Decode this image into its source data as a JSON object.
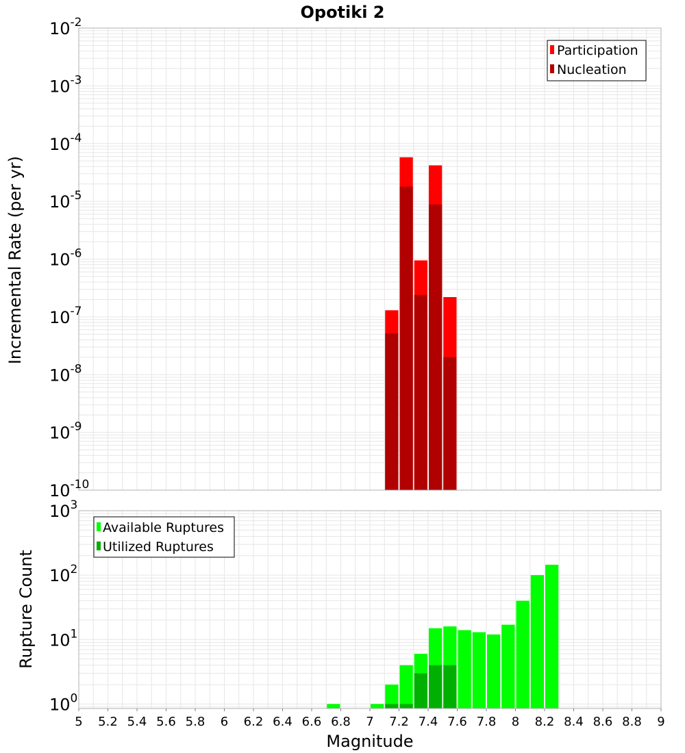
{
  "title": "Opotiki 2",
  "colors": {
    "participation": "#ff0000",
    "nucleation": "#b00000",
    "available": "#00ff00",
    "utilized": "#00b000",
    "grid": "#e6e6e6",
    "frame": "#b0b0b0"
  },
  "chart_data": [
    {
      "type": "bar",
      "name": "incremental-rate",
      "ylabel": "Incremental Rate (per yr)",
      "xlabel": "",
      "yscale": "log",
      "xlim": [
        5,
        9
      ],
      "ylim_exp": [
        -10,
        -2
      ],
      "ytick_exps": [
        -10,
        -9,
        -8,
        -7,
        -6,
        -5,
        -4,
        -3,
        -2
      ],
      "legend": {
        "position": "top-right",
        "entries": [
          "Participation",
          "Nucleation"
        ]
      },
      "bin_width": 0.1,
      "x": [
        7.15,
        7.25,
        7.35,
        7.45,
        7.55
      ],
      "series": [
        {
          "name": "Participation",
          "values": [
            1.3e-07,
            5.8e-05,
            9.5e-07,
            4.2e-05,
            2.2e-07
          ]
        },
        {
          "name": "Nucleation",
          "values": [
            5.2e-08,
            1.8e-05,
            2.4e-07,
            8.8e-06,
            2e-08
          ]
        }
      ]
    },
    {
      "type": "bar",
      "name": "rupture-count",
      "ylabel": "Rupture Count",
      "xlabel": "Magnitude",
      "yscale": "log",
      "xlim": [
        5,
        9
      ],
      "ylim_exp": [
        -0.07,
        3
      ],
      "ytick_exps": [
        0,
        1,
        2,
        3
      ],
      "legend": {
        "position": "top-left",
        "entries": [
          "Available Ruptures",
          "Utilized Ruptures"
        ]
      },
      "bin_width": 0.1,
      "x": [
        6.75,
        7.05,
        7.15,
        7.25,
        7.35,
        7.45,
        7.55,
        7.65,
        7.75,
        7.85,
        7.95,
        8.05,
        8.15,
        8.25
      ],
      "series": [
        {
          "name": "Available Ruptures",
          "values": [
            1,
            1,
            2,
            4,
            6,
            15,
            16,
            14,
            13,
            12,
            17,
            40,
            100,
            145
          ]
        },
        {
          "name": "Utilized Ruptures",
          "values": [
            0,
            0,
            1,
            1,
            3,
            4,
            4,
            0,
            0,
            0,
            0,
            0,
            0,
            0
          ]
        }
      ]
    }
  ],
  "xticks": [
    "5",
    "5.2",
    "5.4",
    "5.6",
    "5.8",
    "6",
    "6.2",
    "6.4",
    "6.6",
    "6.8",
    "7",
    "7.2",
    "7.4",
    "7.6",
    "7.8",
    "8",
    "8.2",
    "8.4",
    "8.6",
    "8.8",
    "9"
  ]
}
